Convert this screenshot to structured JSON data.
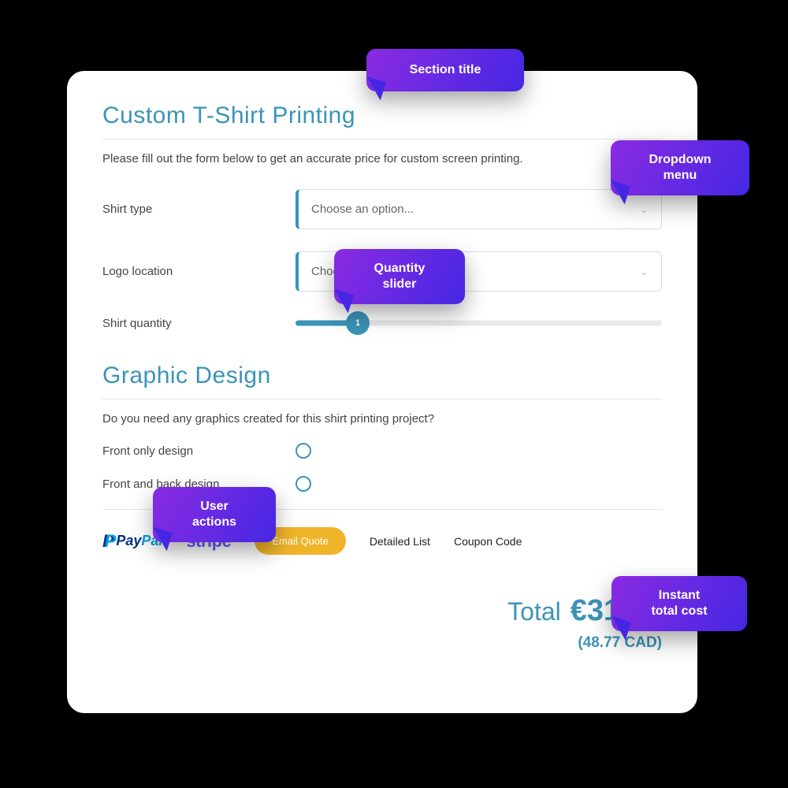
{
  "colors": {
    "page_bg": "#000000",
    "card_bg": "#ffffff",
    "primary": "#3b94b8",
    "text": "#444444",
    "muted": "#666666",
    "border": "#dcdcdc",
    "rule": "#e4e4e4",
    "slider_track": "#e9e9e9",
    "pill_bg": "#f0b429",
    "callout_gradient_from": "#8a2be2",
    "callout_gradient_to": "#4527e3",
    "paypal_dark": "#003087",
    "paypal_light": "#009cde",
    "stripe": "#635bff"
  },
  "section1": {
    "title": "Custom T-Shirt Printing",
    "intro": "Please fill out the form below to get an accurate price for custom screen printing.",
    "fields": {
      "shirt_type": {
        "label": "Shirt type",
        "placeholder": "Choose an option..."
      },
      "logo_location": {
        "label": "Logo location",
        "placeholder": "Choose an option..."
      },
      "shirt_quantity": {
        "label": "Shirt quantity",
        "value": "1",
        "percent": 17
      }
    }
  },
  "section2": {
    "title": "Graphic Design",
    "intro": "Do you need any graphics created for this shirt printing project?",
    "options": {
      "front_only": {
        "label": "Front only design",
        "checked": false
      },
      "front_back": {
        "label": "Front and back design",
        "checked": false
      }
    }
  },
  "actions": {
    "paypal": {
      "pay": "Pay",
      "pal": "Pal"
    },
    "stripe": "stripe",
    "email_quote": "Email Quote",
    "detailed_list": "Detailed List",
    "coupon_code": "Coupon Code"
  },
  "total": {
    "label": "Total",
    "amount": "€31.64",
    "secondary": "(48.77 CAD)"
  },
  "callouts": {
    "section_title": "Section title",
    "dropdown": "Dropdown\nmenu",
    "quantity_slider": "Quantity\nslider",
    "user_actions": "User\nactions",
    "instant_total": "Instant\ntotal cost"
  }
}
